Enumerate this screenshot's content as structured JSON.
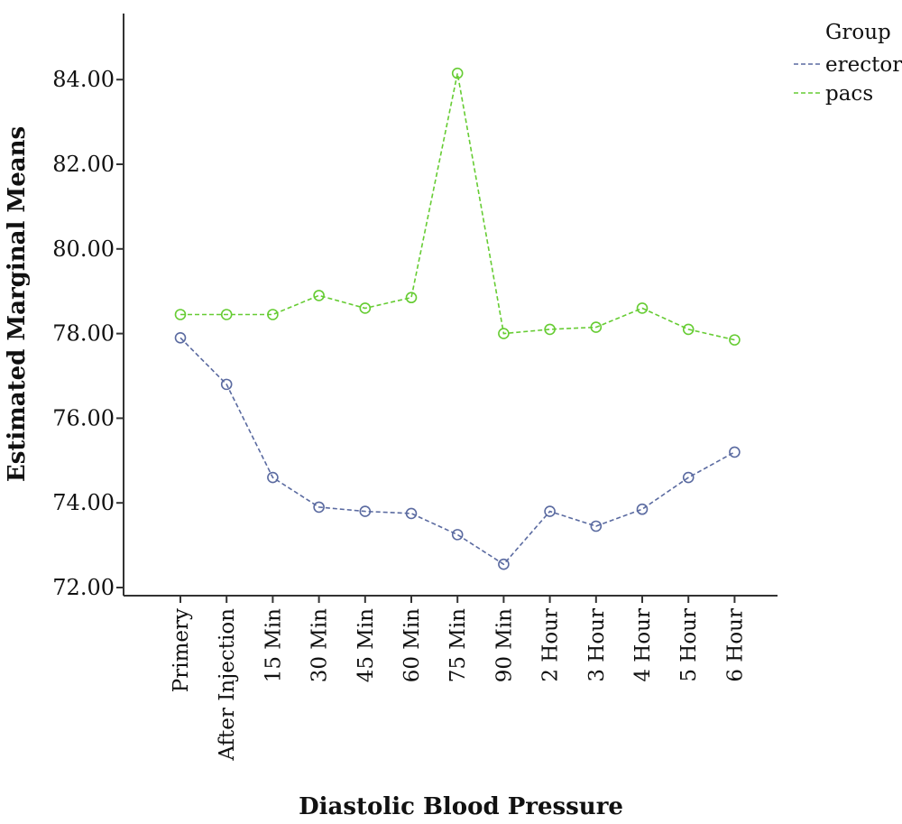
{
  "chart_data": {
    "type": "line",
    "xlabel": "Diastolic Blood Pressure",
    "ylabel": "Estimated Marginal Means",
    "ylim": [
      72,
      85.3
    ],
    "yticks": [
      "72.00",
      "74.00",
      "76.00",
      "78.00",
      "80.00",
      "82.00",
      "84.00"
    ],
    "ytick_values": [
      72,
      74,
      76,
      78,
      80,
      82,
      84
    ],
    "categories": [
      "Primery",
      "After Injection",
      "15 Min",
      "30 Min",
      "45 Min",
      "60 Min",
      "75 Min",
      "90 Min",
      "2 Hour",
      "3 Hour",
      "4 Hour",
      "5 Hour",
      "6 Hour"
    ],
    "legend": {
      "title": "Group",
      "position": "top-right"
    },
    "series": [
      {
        "name": "erector",
        "color": "#5a6aa0",
        "values": [
          77.9,
          76.8,
          74.6,
          73.9,
          73.8,
          73.75,
          73.25,
          72.55,
          73.8,
          73.45,
          73.85,
          74.6,
          75.2
        ]
      },
      {
        "name": "pacs",
        "color": "#66cc33",
        "values": [
          78.45,
          78.45,
          78.45,
          78.9,
          78.6,
          78.85,
          84.15,
          78.0,
          78.1,
          78.15,
          78.6,
          78.1,
          77.85
        ]
      }
    ],
    "grid": false
  }
}
